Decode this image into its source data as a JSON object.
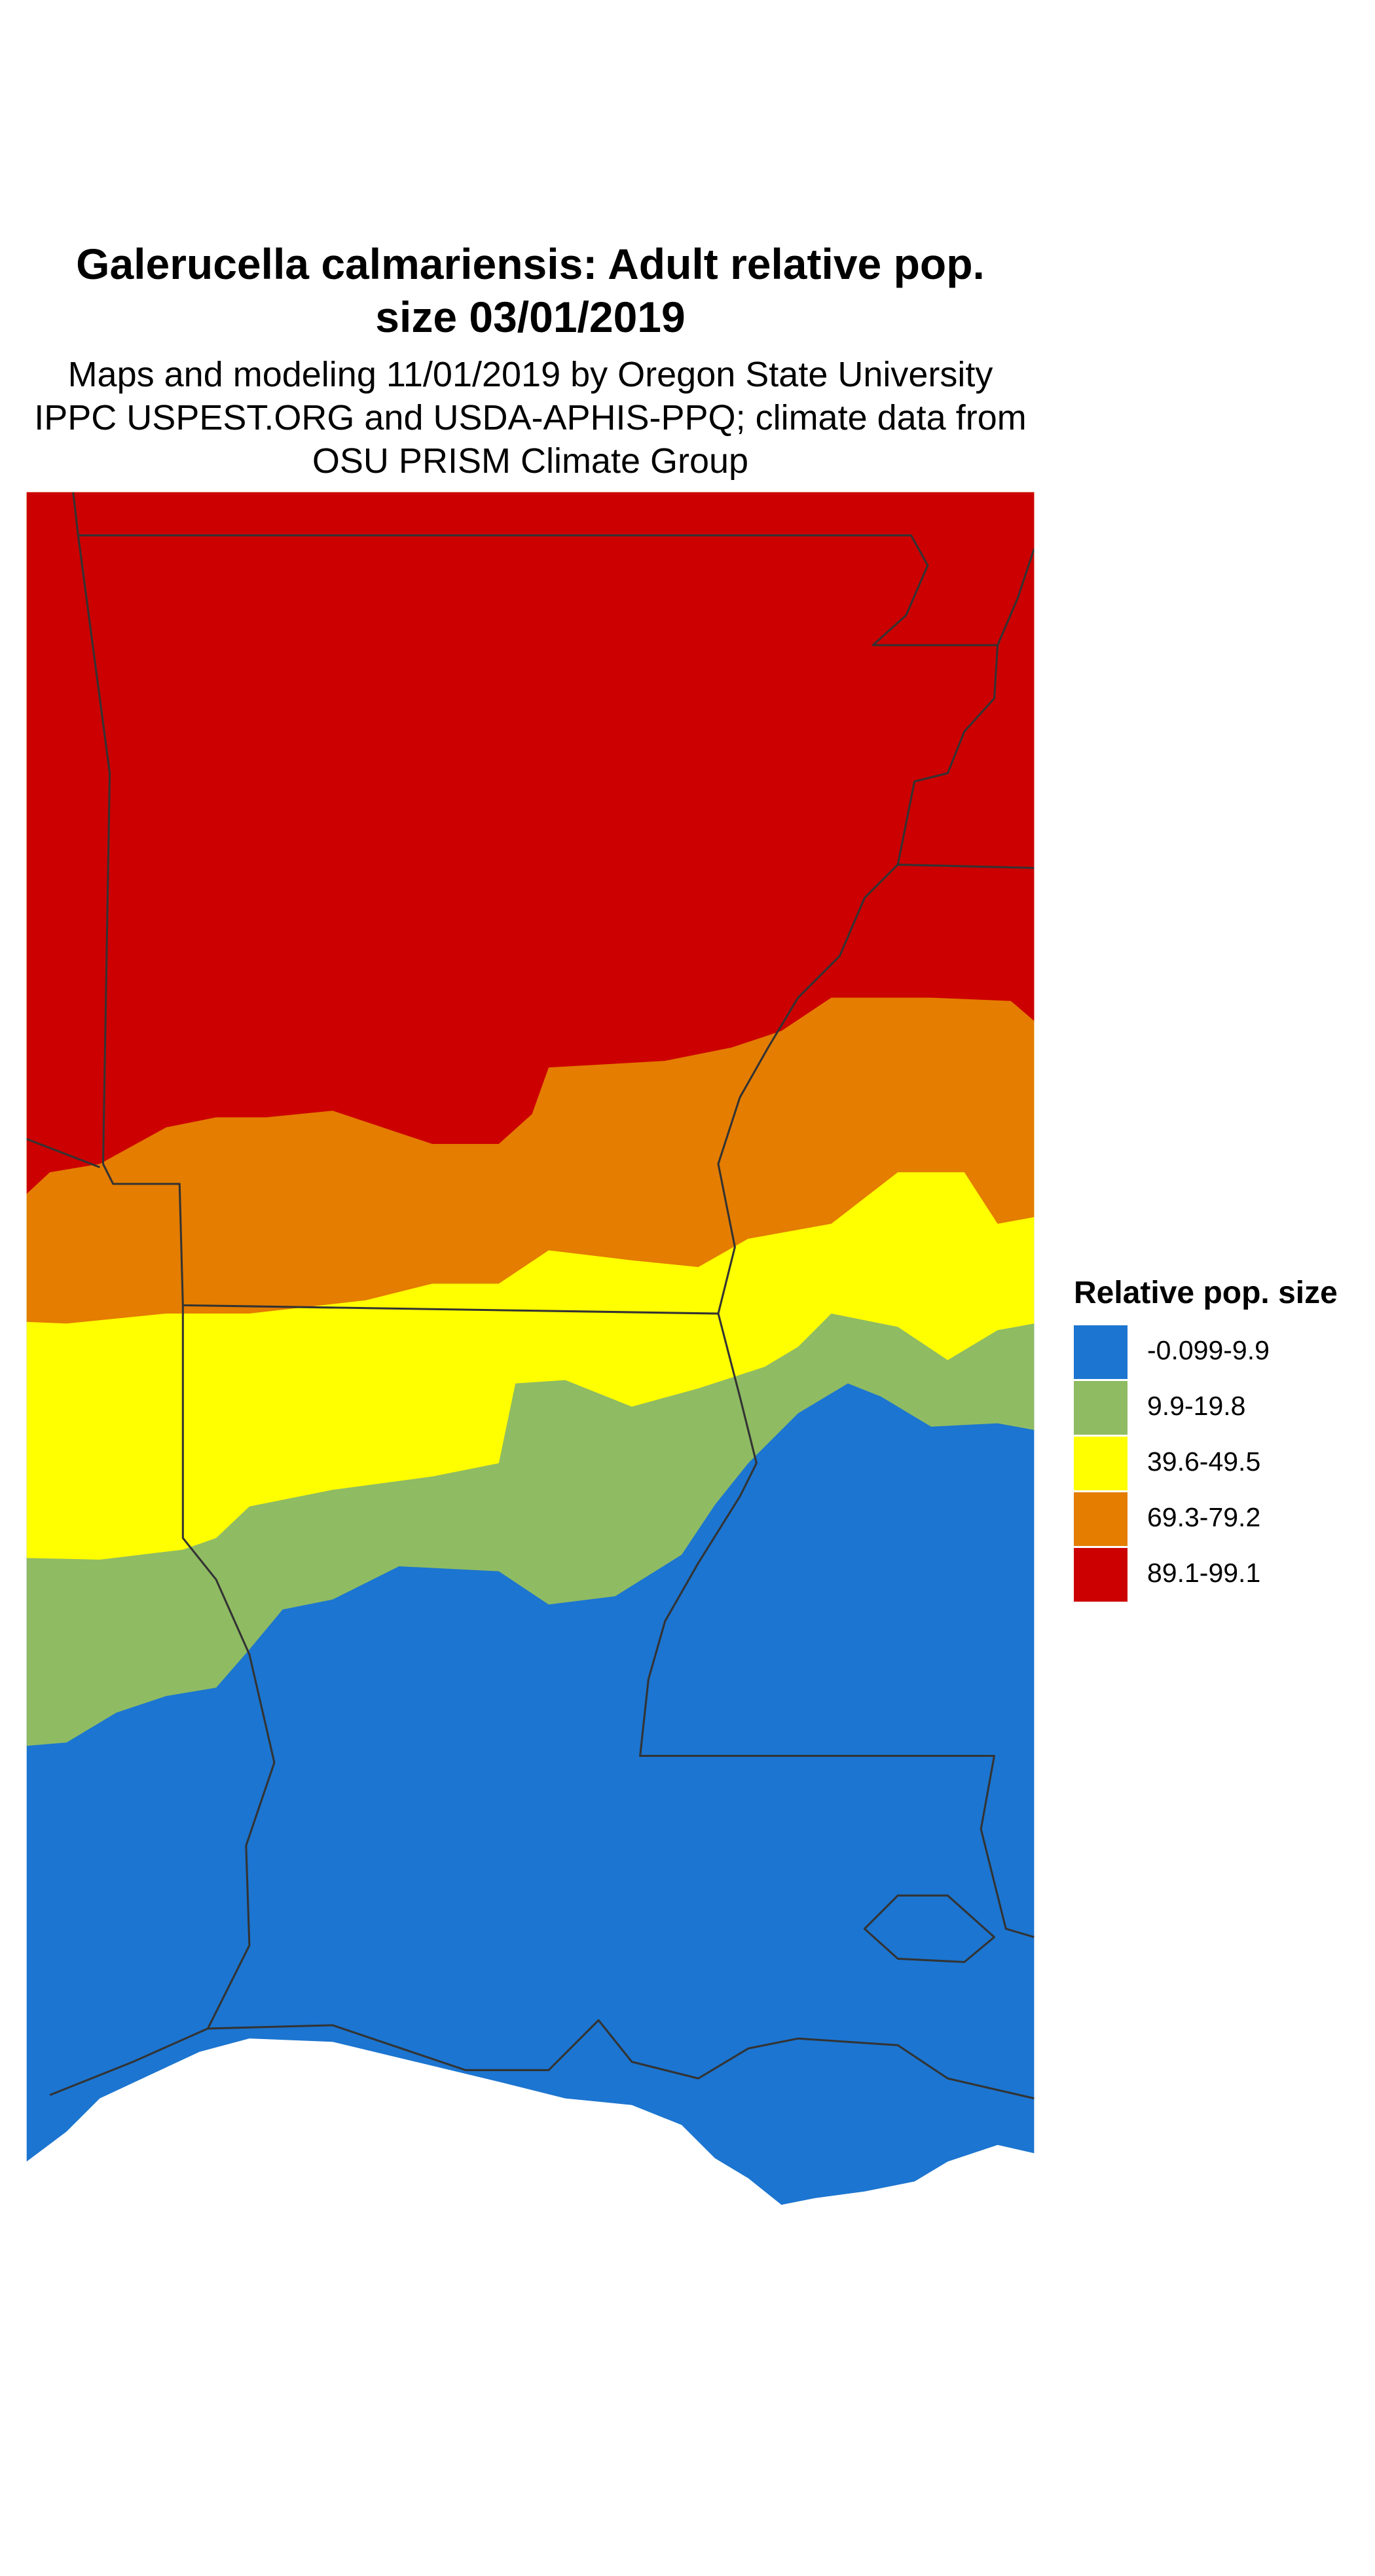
{
  "title": [
    "Galerucella calmariensis: Adult relative pop.",
    "size 03/01/2019"
  ],
  "subtitle": [
    "Maps and modeling 11/01/2019 by Oregon State University",
    "IPPC USPEST.ORG and USDA-APHIS-PPQ; climate data from",
    "OSU PRISM Climate Group"
  ],
  "legend": {
    "title": "Relative pop. size",
    "items": [
      {
        "label": "-0.099-9.9",
        "color": "#1c75d0"
      },
      {
        "label": "9.9-19.8",
        "color": "#8fbb63"
      },
      {
        "label": "39.6-49.5",
        "color": "#ffff00"
      },
      {
        "label": "69.3-79.2",
        "color": "#e47d00"
      },
      {
        "label": "89.1-99.1",
        "color": "#cc0000"
      }
    ]
  }
}
